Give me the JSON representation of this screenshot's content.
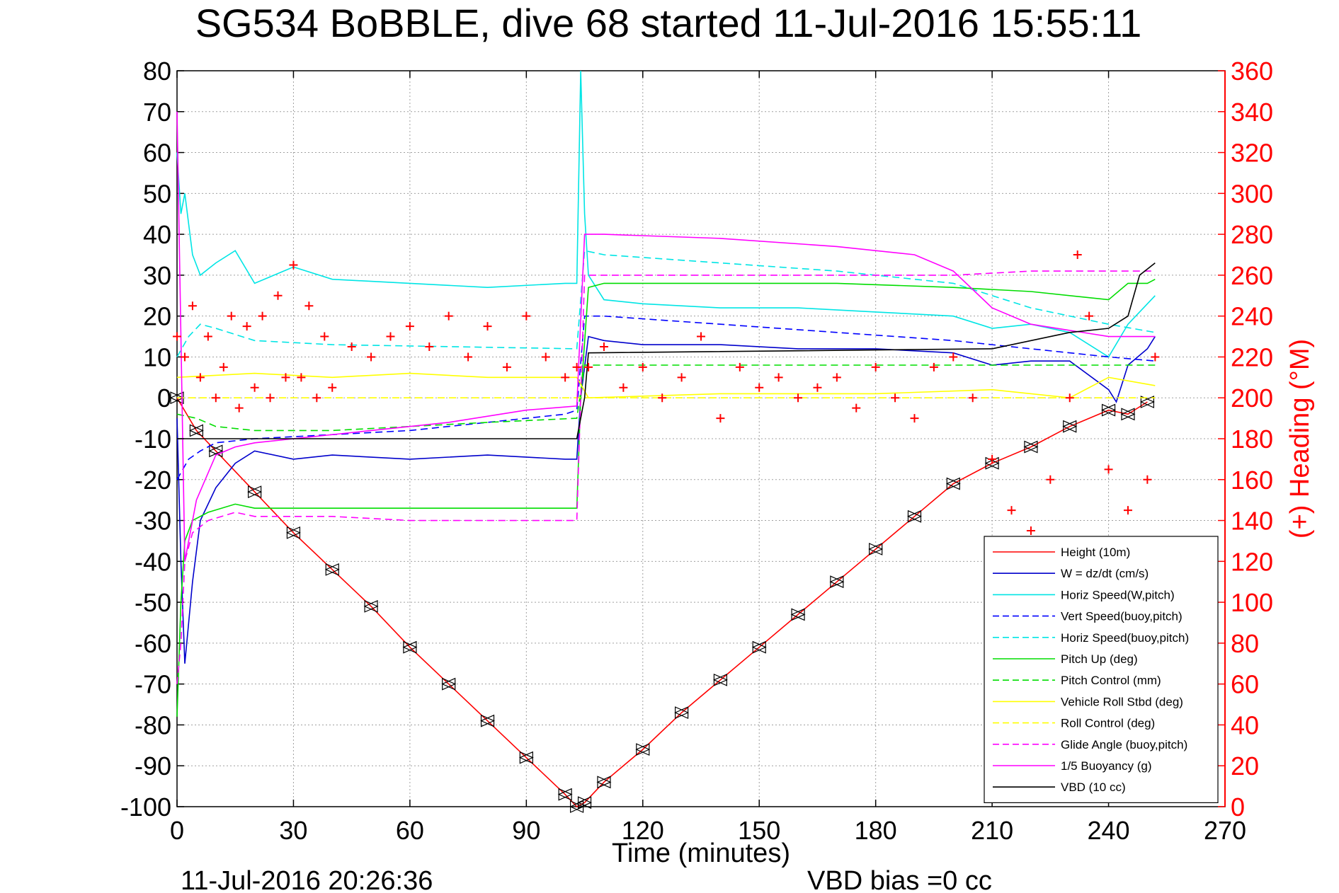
{
  "chart_data": {
    "type": "line",
    "title": "SG534 BoBBLE, dive 68 started 11-Jul-2016 15:55:11",
    "xlabel": "Time (minutes)",
    "ylabel": "",
    "ylabel_right": "(+) Heading (°M)",
    "xlim": [
      0,
      270
    ],
    "ylim": [
      -100,
      80
    ],
    "ylim_right": [
      0,
      360
    ],
    "xticks": [
      0,
      30,
      60,
      90,
      120,
      150,
      180,
      210,
      240,
      270
    ],
    "xtick_labels": [
      "0",
      "30",
      "60",
      "90",
      "120",
      "150",
      "180",
      "210",
      "240",
      "270"
    ],
    "yticks": [
      -100,
      -90,
      -80,
      -70,
      -60,
      -50,
      -40,
      -30,
      -20,
      -10,
      0,
      10,
      20,
      30,
      40,
      50,
      60,
      70,
      80
    ],
    "ytick_labels": [
      "-100",
      "-90",
      "-80",
      "-70",
      "-60",
      "-50",
      "-40",
      "-30",
      "-20",
      "-10",
      "0",
      "10",
      "20",
      "30",
      "40",
      "50",
      "60",
      "70",
      "80"
    ],
    "yticks_right": [
      0,
      20,
      40,
      60,
      80,
      100,
      120,
      140,
      160,
      180,
      200,
      220,
      240,
      260,
      280,
      300,
      320,
      340,
      360
    ],
    "ytick_labels_right": [
      "0",
      "20",
      "40",
      "60",
      "80",
      "100",
      "120",
      "140",
      "160",
      "180",
      "200",
      "220",
      "240",
      "260",
      "280",
      "300",
      "320",
      "340",
      "360"
    ],
    "grid": true,
    "legend_position": "bottom-right",
    "footer_left": "11-Jul-2016 20:26:36",
    "footer_right": "VBD bias =0 cc",
    "series": [
      {
        "name": "Height (10m)",
        "color": "#ff0000",
        "style": "solid",
        "marker": "triangle",
        "x": [
          0,
          5,
          10,
          20,
          30,
          40,
          50,
          60,
          70,
          80,
          90,
          100,
          103,
          105,
          110,
          120,
          130,
          140,
          150,
          160,
          170,
          180,
          190,
          200,
          210,
          220,
          230,
          240,
          245,
          250
        ],
        "y": [
          0,
          -8,
          -13,
          -23,
          -33,
          -42,
          -51,
          -61,
          -70,
          -79,
          -88,
          -97,
          -100,
          -99,
          -94,
          -86,
          -77,
          -69,
          -61,
          -53,
          -45,
          -37,
          -29,
          -21,
          -16,
          -12,
          -7,
          -3,
          -4,
          -1
        ]
      },
      {
        "name": "W = dz/dt (cm/s)",
        "color": "#0000cc",
        "style": "solid",
        "marker": "",
        "x": [
          0,
          1,
          2,
          4,
          6,
          10,
          15,
          20,
          30,
          40,
          60,
          80,
          100,
          103,
          104,
          106,
          110,
          120,
          140,
          160,
          180,
          200,
          210,
          220,
          230,
          240,
          242,
          245,
          250,
          252
        ],
        "y": [
          -5,
          -40,
          -65,
          -45,
          -30,
          -22,
          -16,
          -13,
          -15,
          -14,
          -15,
          -14,
          -15,
          -15,
          0,
          15,
          14,
          13,
          13,
          12,
          12,
          11,
          8,
          9,
          9,
          2,
          -1,
          8,
          12,
          15
        ]
      },
      {
        "name": "Horiz Speed(W,pitch)",
        "color": "#00e5e5",
        "style": "solid",
        "marker": "",
        "x": [
          0,
          1,
          2,
          4,
          6,
          10,
          15,
          20,
          30,
          40,
          60,
          80,
          100,
          103,
          104,
          105,
          106,
          110,
          120,
          140,
          160,
          180,
          200,
          210,
          220,
          230,
          240,
          245,
          250,
          252
        ],
        "y": [
          60,
          45,
          50,
          35,
          30,
          33,
          36,
          28,
          32,
          29,
          28,
          27,
          28,
          28,
          80,
          45,
          30,
          24,
          23,
          22,
          22,
          21,
          20,
          17,
          18,
          16,
          10,
          18,
          23,
          25
        ]
      },
      {
        "name": "Vert Speed(buoy,pitch)",
        "color": "#0000ff",
        "style": "dashed",
        "marker": "",
        "x": [
          0,
          3,
          6,
          10,
          20,
          40,
          60,
          80,
          100,
          103,
          105,
          110,
          140,
          170,
          200,
          220,
          240,
          252
        ],
        "y": [
          -20,
          -15,
          -13,
          -11,
          -10,
          -9,
          -8,
          -6,
          -4,
          -3,
          20,
          20,
          18,
          16,
          14,
          12,
          10,
          9
        ]
      },
      {
        "name": "Horiz Speed(buoy,pitch)",
        "color": "#00e5e5",
        "style": "dashed",
        "marker": "",
        "x": [
          0,
          3,
          6,
          10,
          20,
          40,
          103,
          105,
          110,
          140,
          170,
          200,
          220,
          240,
          252
        ],
        "y": [
          10,
          15,
          18,
          17,
          14,
          13,
          12,
          36,
          35,
          33,
          31,
          28,
          22,
          18,
          16
        ]
      },
      {
        "name": "Pitch Up (deg)",
        "color": "#00dd00",
        "style": "solid",
        "marker": "",
        "x": [
          0,
          1,
          2,
          4,
          8,
          15,
          20,
          30,
          40,
          60,
          80,
          100,
          103,
          104,
          106,
          110,
          140,
          170,
          200,
          220,
          240,
          245,
          250,
          252
        ],
        "y": [
          -78,
          -50,
          -35,
          -30,
          -28,
          -26,
          -27,
          -27,
          -27,
          -27,
          -27,
          -27,
          -27,
          0,
          27,
          28,
          28,
          28,
          27,
          26,
          24,
          28,
          28,
          29
        ]
      },
      {
        "name": "Pitch Control (mm)",
        "color": "#00dd00",
        "style": "dashed",
        "marker": "",
        "x": [
          0,
          5,
          10,
          20,
          40,
          60,
          80,
          103,
          105,
          140,
          170,
          200,
          220,
          240,
          252
        ],
        "y": [
          -4,
          -5,
          -7,
          -8,
          -8,
          -7,
          -6,
          -5,
          8,
          8,
          8,
          8,
          8,
          8,
          8
        ]
      },
      {
        "name": "Vehicle Roll Stbd (deg)",
        "color": "#ffff00",
        "style": "solid",
        "marker": "",
        "x": [
          0,
          20,
          40,
          60,
          80,
          103,
          106,
          140,
          180,
          210,
          230,
          240,
          252
        ],
        "y": [
          5,
          6,
          5,
          6,
          5,
          5,
          0,
          1,
          1,
          2,
          0,
          5,
          3
        ]
      },
      {
        "name": "Roll Control (deg)",
        "color": "#ffff00",
        "style": "dashed",
        "marker": "",
        "x": [
          0,
          20,
          40,
          60,
          80,
          103,
          106,
          140,
          180,
          210,
          240,
          252
        ],
        "y": [
          0,
          0,
          0,
          0,
          0,
          0,
          0,
          0,
          0,
          0,
          0,
          0
        ]
      },
      {
        "name": "Glide Angle (buoy,pitch)",
        "color": "#ff00ff",
        "style": "dashed",
        "marker": "",
        "x": [
          0,
          1,
          2,
          4,
          8,
          15,
          20,
          40,
          60,
          80,
          100,
          103,
          105,
          110,
          140,
          170,
          200,
          220,
          240,
          252
        ],
        "y": [
          -70,
          -60,
          -40,
          -33,
          -30,
          -28,
          -29,
          -29,
          -30,
          -30,
          -30,
          -30,
          30,
          30,
          30,
          30,
          30,
          31,
          31,
          31
        ]
      },
      {
        "name": "1/5 Buoyancy (g)",
        "color": "#ff00ff",
        "style": "solid",
        "marker": "",
        "x": [
          0,
          2,
          5,
          10,
          15,
          20,
          30,
          50,
          70,
          90,
          103,
          105,
          110,
          140,
          170,
          190,
          200,
          210,
          220,
          240,
          252
        ],
        "y": [
          70,
          -40,
          -25,
          -14,
          -12,
          -11,
          -10,
          -8,
          -6,
          -3,
          -2,
          40,
          40,
          39,
          37,
          35,
          31,
          22,
          18,
          15,
          15
        ]
      },
      {
        "name": "VBD (10 cc)",
        "color": "#000000",
        "style": "solid",
        "marker": "",
        "x": [
          0,
          1,
          40,
          103,
          105,
          106,
          210,
          230,
          240,
          245,
          248,
          252
        ],
        "y": [
          -10,
          -10,
          -10,
          -10,
          0,
          11,
          12,
          16,
          17,
          20,
          30,
          33
        ]
      },
      {
        "name": "",
        "axis": "right",
        "color": "#ff0000",
        "style": "none",
        "marker": "plus",
        "x": [
          0,
          2,
          4,
          6,
          8,
          10,
          12,
          14,
          16,
          18,
          20,
          22,
          24,
          26,
          28,
          30,
          32,
          34,
          36,
          38,
          40,
          45,
          50,
          55,
          60,
          65,
          70,
          75,
          80,
          85,
          90,
          95,
          100,
          103,
          106,
          110,
          115,
          120,
          125,
          130,
          135,
          140,
          145,
          150,
          155,
          160,
          165,
          170,
          175,
          180,
          185,
          190,
          195,
          200,
          205,
          210,
          215,
          220,
          225,
          230,
          232,
          235,
          240,
          245,
          250,
          252
        ],
        "y": [
          230,
          220,
          245,
          210,
          230,
          200,
          215,
          240,
          195,
          235,
          205,
          240,
          200,
          250,
          210,
          265,
          210,
          245,
          200,
          230,
          205,
          225,
          220,
          230,
          235,
          225,
          240,
          220,
          235,
          215,
          240,
          220,
          210,
          215,
          215,
          225,
          205,
          215,
          200,
          210,
          230,
          190,
          215,
          205,
          210,
          200,
          205,
          210,
          195,
          215,
          200,
          190,
          215,
          220,
          200,
          170,
          145,
          135,
          160,
          200,
          270,
          240,
          165,
          145,
          160,
          220
        ]
      }
    ]
  }
}
